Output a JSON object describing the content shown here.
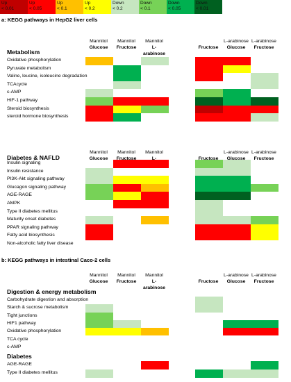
{
  "colors": {
    "up_p001": "#c00000",
    "up_p005": "#ff0000",
    "up_p01": "#ffc000",
    "up_p02": "#ffff00",
    "down_p02": "#c6e6c0",
    "down_p01": "#77d257",
    "down_p005": "#00b050",
    "down_p001": "#006020"
  },
  "legend": [
    {
      "label": "Up\n< 0.01",
      "color": "#c00000"
    },
    {
      "label": "Up\n< 0.05",
      "color": "#ff0000"
    },
    {
      "label": "Up\n< 0.1",
      "color": "#ffc000"
    },
    {
      "label": "Up\n< 0.2",
      "color": "#ffff00"
    },
    {
      "label": "Down\n< 0.2",
      "color": "#c6e6c0"
    },
    {
      "label": "Down\n< 0.1",
      "color": "#77d257"
    },
    {
      "label": "Down\n< 0.05",
      "color": "#00b050"
    },
    {
      "label": "Down\n< 0.01",
      "color": "#006020"
    }
  ],
  "part_a_title": "a: KEGG pathways in HepG2 liver cells",
  "part_b_title": "b: KEGG pathways in intestinal Caco-2 cells",
  "col_headers": [
    {
      "top": "Mannitol",
      "bottom": "Glucose"
    },
    {
      "top": "Mannitol",
      "bottom": "Fructose"
    },
    {
      "top": "Mannitol",
      "bottom": "L-arabinose"
    },
    {
      "top": "",
      "bottom": "Fructose"
    },
    {
      "top": "L-arabinose",
      "bottom": "Glucose"
    },
    {
      "top": "L-arabinose",
      "bottom": "Fructose"
    }
  ],
  "blocks": [
    {
      "section": "Metabolism",
      "rows": [
        {
          "label": "Oxidative phosphorylation",
          "cells": [
            "up_p01",
            "",
            "down_p02",
            "up_p005",
            "up_p005",
            ""
          ]
        },
        {
          "label": "Pyruvate metabolism",
          "cells": [
            "",
            "down_p005",
            "",
            "up_p005",
            "up_p02",
            ""
          ]
        },
        {
          "label": "Valine, leucine, isoleucine degradation",
          "cells": [
            "",
            "down_p005",
            "",
            "up_p005",
            "",
            "down_p02"
          ]
        },
        {
          "label": "TCAcycle",
          "cells": [
            "",
            "down_p02",
            "",
            "",
            "",
            "down_p02"
          ]
        },
        {
          "label": "c-AMP",
          "cells": [
            "down_p02",
            "",
            "",
            "down_p01",
            "down_p005",
            ""
          ]
        },
        {
          "label": "HIF-1 pathway",
          "cells": [
            "down_p01",
            "up_p005",
            "up_p005",
            "down_p001",
            "down_p005",
            "down_p001"
          ]
        },
        {
          "label": "Steroid biosynthesis",
          "cells": [
            "up_p005",
            "up_p02",
            "down_p01",
            "up_p001",
            "up_p005",
            "up_p005"
          ]
        },
        {
          "label": "steroid hormone biosynthesis",
          "cells": [
            "up_p005",
            "down_p005",
            "",
            "up_p005",
            "up_p005",
            "down_p02"
          ]
        }
      ]
    },
    {
      "section": "Diabetes & NAFLD",
      "rows": [
        {
          "label": "Insulin signaling",
          "cells": [
            "",
            "up_p005",
            "up_p005",
            "down_p01",
            "down_p02",
            ""
          ]
        },
        {
          "label": "Insulin resistance",
          "cells": [
            "down_p02",
            "",
            "",
            "down_p02",
            "down_p02",
            ""
          ]
        },
        {
          "label": "PI3K-Akt signaling pathway",
          "cells": [
            "down_p02",
            "up_p02",
            "up_p02",
            "down_p005",
            "down_p005",
            ""
          ]
        },
        {
          "label": "Glucagon signaling pathway",
          "cells": [
            "down_p01",
            "up_p005",
            "up_p01",
            "down_p005",
            "down_p005",
            "down_p01"
          ]
        },
        {
          "label": "AGE-RAGE",
          "cells": [
            "down_p01",
            "up_p02",
            "up_p005",
            "down_p001",
            "down_p001",
            ""
          ]
        },
        {
          "label": "AMPK",
          "cells": [
            "",
            "up_p005",
            "up_p005",
            "down_p02",
            "",
            ""
          ]
        },
        {
          "label": "Type II diabetes mellitus",
          "cells": [
            "",
            "",
            "",
            "down_p02",
            "",
            ""
          ]
        },
        {
          "label": "Maturity onset diabetes",
          "cells": [
            "down_p02",
            "",
            "up_p01",
            "down_p02",
            "down_p02",
            "down_p01"
          ]
        },
        {
          "label": "PPAR signaling pathway",
          "cells": [
            "up_p005",
            "",
            "",
            "up_p005",
            "up_p005",
            "up_p02"
          ]
        },
        {
          "label": "Fatty acid biosynthesis",
          "cells": [
            "up_p005",
            "",
            "",
            "up_p005",
            "up_p005",
            "up_p02"
          ]
        },
        {
          "label": "Non-alcoholic fatty liver disease",
          "cells": [
            "",
            "",
            "",
            "",
            "",
            ""
          ]
        }
      ]
    },
    {
      "section": "Digestion & energy metabolism",
      "rows": [
        {
          "label": "Carbohydrate digestion and absorption",
          "cells": [
            "",
            "",
            "",
            "down_p02",
            "",
            ""
          ]
        },
        {
          "label": "Starch & sucrose metabolism",
          "cells": [
            "down_p02",
            "",
            "",
            "down_p02",
            "",
            ""
          ]
        },
        {
          "label": "Tight junctions",
          "cells": [
            "down_p01",
            "",
            "",
            "",
            "",
            ""
          ]
        },
        {
          "label": "HIF1 pathway",
          "cells": [
            "down_p01",
            "down_p02",
            "",
            "",
            "down_p005",
            "down_p005"
          ]
        },
        {
          "label": "Oxidative phosphorylation",
          "cells": [
            "up_p02",
            "up_p02",
            "up_p01",
            "",
            "up_p005",
            "up_p005"
          ]
        },
        {
          "label": "TCA cycle",
          "cells": [
            "",
            "",
            "",
            "",
            "",
            ""
          ]
        },
        {
          "label": "c-AMP",
          "cells": [
            "",
            "",
            "",
            "",
            "",
            ""
          ]
        }
      ]
    },
    {
      "section": "Diabetes",
      "rows": [
        {
          "label": "AGE-RAGE",
          "cells": [
            "",
            "",
            "up_p005",
            "",
            "",
            "down_p005"
          ]
        },
        {
          "label": "Type II diabetes mellitus",
          "cells": [
            "down_p02",
            "",
            "",
            "down_p005",
            "down_p02",
            "down_p02"
          ]
        }
      ]
    }
  ]
}
